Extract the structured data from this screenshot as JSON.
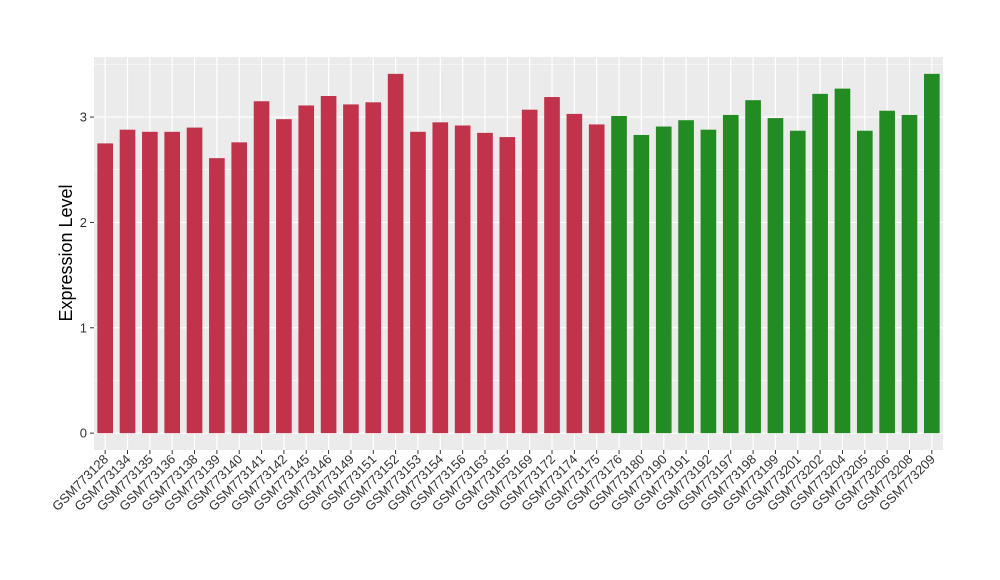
{
  "chart_data": {
    "type": "bar",
    "ylabel": "Expression Level",
    "xlabel": "",
    "ylim": [
      -0.16,
      3.57
    ],
    "yticks": [
      0,
      1,
      2,
      3
    ],
    "grid": true,
    "panel_background": "#EBEBEB",
    "grid_color": "#FFFFFF",
    "categories": [
      "GSM773128",
      "GSM773134",
      "GSM773135",
      "GSM773136",
      "GSM773138",
      "GSM773139",
      "GSM773140",
      "GSM773141",
      "GSM773142",
      "GSM773145",
      "GSM773146",
      "GSM773149",
      "GSM773151",
      "GSM773152",
      "GSM773153",
      "GSM773154",
      "GSM773156",
      "GSM773163",
      "GSM773165",
      "GSM773169",
      "GSM773172",
      "GSM773174",
      "GSM773175",
      "GSM773176",
      "GSM773180",
      "GSM773190",
      "GSM773191",
      "GSM773192",
      "GSM773197",
      "GSM773198",
      "GSM773199",
      "GSM773201",
      "GSM773202",
      "GSM773204",
      "GSM773205",
      "GSM773206",
      "GSM773208",
      "GSM773209"
    ],
    "values": [
      2.75,
      2.88,
      2.86,
      2.86,
      2.9,
      2.61,
      2.76,
      3.15,
      2.98,
      3.11,
      3.2,
      3.12,
      3.14,
      3.41,
      2.86,
      2.95,
      2.92,
      2.85,
      2.81,
      3.07,
      3.19,
      3.03,
      2.93,
      3.01,
      2.83,
      2.91,
      2.97,
      2.88,
      3.02,
      3.16,
      2.99,
      2.87,
      3.22,
      3.27,
      2.87,
      3.06,
      3.02,
      3.41
    ],
    "groups": [
      0,
      0,
      0,
      0,
      0,
      0,
      0,
      0,
      0,
      0,
      0,
      0,
      0,
      0,
      0,
      0,
      0,
      0,
      0,
      0,
      0,
      0,
      0,
      1,
      1,
      1,
      1,
      1,
      1,
      1,
      1,
      1,
      1,
      1,
      1,
      1,
      1,
      1
    ],
    "group_colors": [
      "#C0334A",
      "#228B22"
    ]
  }
}
